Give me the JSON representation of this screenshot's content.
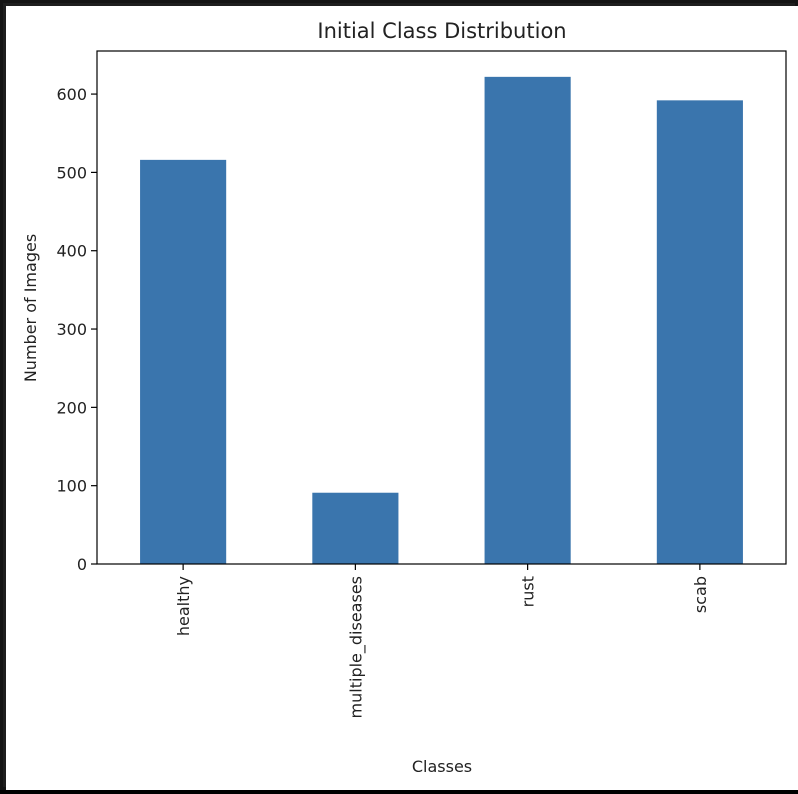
{
  "chart_data": {
    "type": "bar",
    "title": "Initial Class Distribution",
    "xlabel": "Classes",
    "ylabel": "Number of Images",
    "categories": [
      "healthy",
      "multiple_diseases",
      "rust",
      "scab"
    ],
    "values": [
      516,
      91,
      622,
      592
    ],
    "ylim": [
      0,
      655
    ],
    "yticks": [
      0,
      100,
      200,
      300,
      400,
      500,
      600
    ],
    "grid": false,
    "legend": "none",
    "bar_color": "#3a75ad"
  }
}
